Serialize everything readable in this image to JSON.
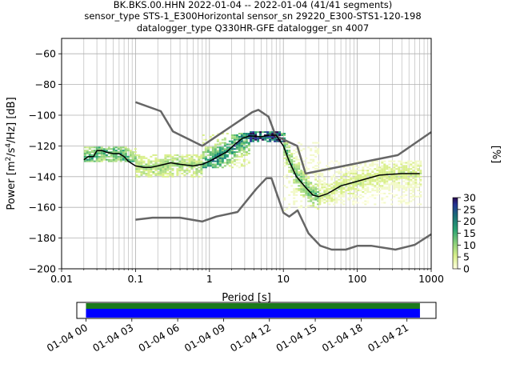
{
  "header": {
    "line1": "BK.BKS.00.HHN   2022-01-04 -- 2022-01-04  (41/41 segments)",
    "line2": "sensor_type STS-1_E300Horizontal sensor_sn 29220_E300-STS1-120-198",
    "line3": "datalogger_type Q330HR-GFE datalogger_sn 4007"
  },
  "colorbar": {
    "label": "[%]",
    "ticks": [
      "0",
      "5",
      "10",
      "15",
      "20",
      "25",
      "30"
    ],
    "range": [
      0,
      30
    ]
  },
  "colors": {
    "noise_models": "#666666",
    "mode": "#000000",
    "coverage_data": "#1b7a1b",
    "coverage_gaps": "#0000ff"
  },
  "chart_data": [
    {
      "type": "heatmap",
      "title": "",
      "xlabel": "Period [s]",
      "ylabel_parts": [
        "Power [m",
        "2",
        "/s",
        "4",
        "/Hz] [dB]"
      ],
      "xscale": "log",
      "xlim": [
        0.01,
        1000
      ],
      "ylim": [
        -200,
        -50
      ],
      "xticks": [
        0.01,
        0.1,
        1,
        10,
        100,
        1000
      ],
      "xtick_labels": [
        "0.01",
        "0.1",
        "1",
        "10",
        "100",
        "1000"
      ],
      "yticks": [
        -200,
        -180,
        -160,
        -140,
        -120,
        -100,
        -80,
        -60
      ],
      "ytick_labels": [
        "−200",
        "−180",
        "−160",
        "−140",
        "−120",
        "−100",
        "−80",
        "−60"
      ],
      "grid": true,
      "series": [
        {
          "name": "",
          "role": "new-high-noise-model",
          "points": [
            [
              0.1,
              -91.5
            ],
            [
              0.22,
              -97.4
            ],
            [
              0.32,
              -110.5
            ],
            [
              0.8,
              -120
            ],
            [
              3.8,
              -98
            ],
            [
              4.6,
              -96.5
            ],
            [
              6.3,
              -101
            ],
            [
              7.9,
              -113.5
            ],
            [
              15.4,
              -120
            ],
            [
              20,
              -138
            ],
            [
              354,
              -126
            ],
            [
              1000,
              -111
            ]
          ]
        },
        {
          "name": "",
          "role": "new-low-noise-model",
          "points": [
            [
              0.1,
              -168
            ],
            [
              0.17,
              -166.7
            ],
            [
              0.4,
              -166.7
            ],
            [
              0.8,
              -169.2
            ],
            [
              1.24,
              -166
            ],
            [
              2.4,
              -163
            ],
            [
              4.3,
              -148
            ],
            [
              5.9,
              -141
            ],
            [
              6.9,
              -141
            ],
            [
              10,
              -163.5
            ],
            [
              12,
              -166
            ],
            [
              15.6,
              -162
            ],
            [
              21.9,
              -177
            ],
            [
              31.6,
              -185
            ],
            [
              45,
              -187.5
            ],
            [
              70,
              -187.5
            ],
            [
              101,
              -185
            ],
            [
              154,
              -185
            ],
            [
              328,
              -187.5
            ],
            [
              600,
              -184.4
            ],
            [
              1000,
              -177.5
            ]
          ]
        },
        {
          "name": "",
          "role": "mode",
          "points": [
            [
              0.02,
              -129
            ],
            [
              0.023,
              -127
            ],
            [
              0.027,
              -127
            ],
            [
              0.03,
              -123
            ],
            [
              0.035,
              -123
            ],
            [
              0.04,
              -124
            ],
            [
              0.05,
              -125
            ],
            [
              0.06,
              -125
            ],
            [
              0.07,
              -127
            ],
            [
              0.08,
              -130
            ],
            [
              0.1,
              -133
            ],
            [
              0.13,
              -134
            ],
            [
              0.16,
              -134
            ],
            [
              0.2,
              -133
            ],
            [
              0.3,
              -131
            ],
            [
              0.4,
              -132
            ],
            [
              0.6,
              -133
            ],
            [
              0.8,
              -132
            ],
            [
              1.0,
              -130
            ],
            [
              1.3,
              -127
            ],
            [
              1.7,
              -124
            ],
            [
              2.2,
              -119
            ],
            [
              2.8,
              -115
            ],
            [
              3.5,
              -113.5
            ],
            [
              5,
              -114
            ],
            [
              6.5,
              -113
            ],
            [
              8,
              -113
            ],
            [
              10,
              -120
            ],
            [
              12,
              -130
            ],
            [
              15,
              -140
            ],
            [
              20,
              -147
            ],
            [
              25,
              -152
            ],
            [
              30,
              -153
            ],
            [
              40,
              -151
            ],
            [
              60,
              -146
            ],
            [
              100,
              -143
            ],
            [
              200,
              -139
            ],
            [
              400,
              -138
            ],
            [
              700,
              -138
            ]
          ]
        }
      ],
      "density_bands": [
        {
          "x_from": 0.02,
          "x_to": 0.1,
          "y_min": -130,
          "y_max": -121,
          "level": 14
        },
        {
          "x_from": 0.1,
          "x_to": 0.8,
          "y_min": -140,
          "y_max": -126,
          "level": 9
        },
        {
          "x_from": 0.8,
          "x_to": 3.5,
          "y_min": -134,
          "y_max": -112,
          "level": 18
        },
        {
          "x_from": 3.5,
          "x_to": 10,
          "y_min": -117,
          "y_max": -111,
          "level": 24
        },
        {
          "x_from": 10,
          "x_to": 30,
          "y_min": -162,
          "y_max": -118,
          "level": 12
        },
        {
          "x_from": 30,
          "x_to": 700,
          "y_min": -158,
          "y_max": -130,
          "level": 6
        }
      ]
    },
    {
      "type": "bar",
      "title": "",
      "xlabel": "",
      "ylabel": "",
      "xticks": [
        "01-04 00",
        "01-04 03",
        "01-04 06",
        "01-04 09",
        "01-04 12",
        "01-04 15",
        "01-04 18",
        "01-04 21"
      ],
      "xlim_hours": [
        -0.6,
        22.9
      ],
      "series": [
        {
          "name": "",
          "role": "data-coverage",
          "from_hours": 0,
          "to_hours": 21.85
        },
        {
          "name": "",
          "role": "gap-free-coverage",
          "from_hours": 0,
          "to_hours": 21.85
        }
      ]
    }
  ]
}
